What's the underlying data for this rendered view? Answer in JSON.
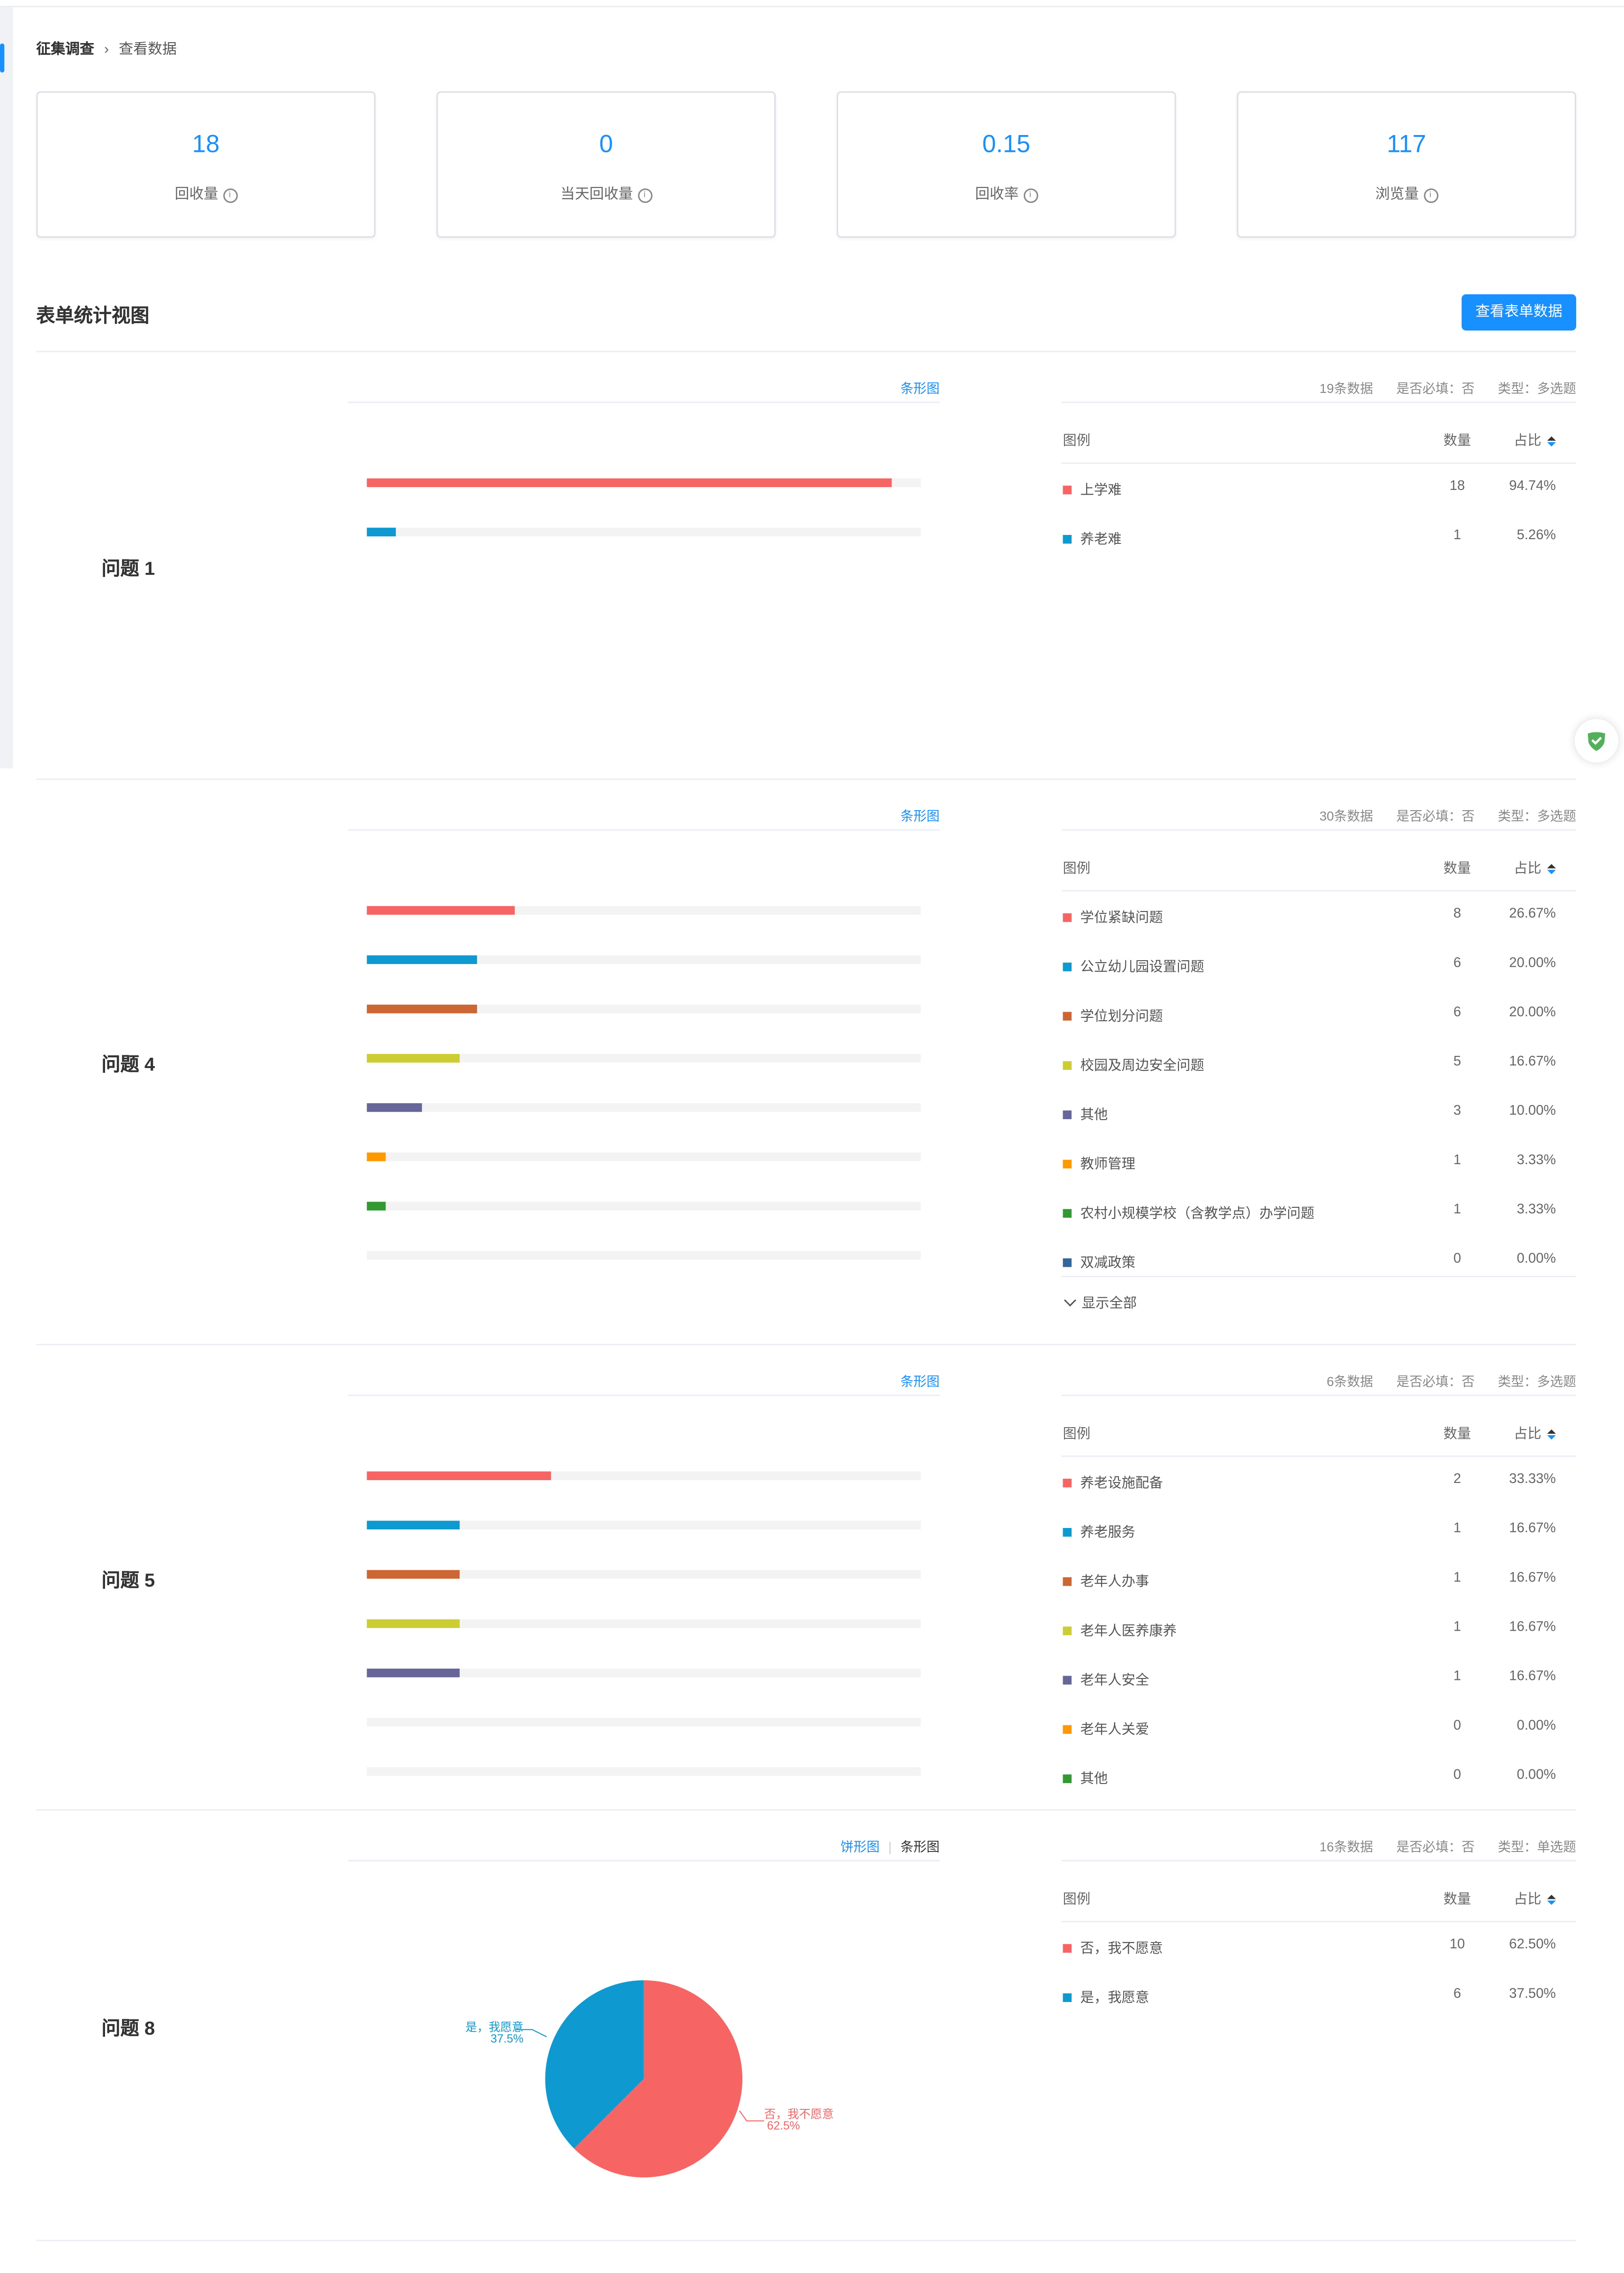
{
  "breadcrumb": {
    "parent": "征集调查",
    "current": "查看数据"
  },
  "stats": [
    {
      "value": "18",
      "label": "回收量"
    },
    {
      "value": "0",
      "label": "当天回收量"
    },
    {
      "value": "0.15",
      "label": "回收率"
    },
    {
      "value": "117",
      "label": "浏览量"
    }
  ],
  "section_title": "表单统计视图",
  "view_form_data_button": "查看表单数据",
  "table_headers": {
    "legend": "图例",
    "count": "数量",
    "ratio": "占比"
  },
  "colors": [
    "#f76464",
    "#0e9ad0",
    "#cc6633",
    "#cccc33",
    "#666699",
    "#ff9900",
    "#339933",
    "#336699"
  ],
  "questions": [
    {
      "label": "问题 1",
      "chart_types": [
        "条形图"
      ],
      "active_chart": "条形图",
      "data_count": "19条数据",
      "required": "是否必填：否",
      "type": "类型：多选题",
      "items": [
        {
          "name": "上学难",
          "count": "18",
          "ratio": "94.74%",
          "fraction": 0.9474
        },
        {
          "name": "养老难",
          "count": "1",
          "ratio": "5.26%",
          "fraction": 0.0526
        }
      ]
    },
    {
      "label": "问题 4",
      "chart_types": [
        "条形图"
      ],
      "active_chart": "条形图",
      "data_count": "30条数据",
      "required": "是否必填：否",
      "type": "类型：多选题",
      "show_all": "显示全部",
      "items": [
        {
          "name": "学位紧缺问题",
          "count": "8",
          "ratio": "26.67%",
          "fraction": 0.2667
        },
        {
          "name": "公立幼儿园设置问题",
          "count": "6",
          "ratio": "20.00%",
          "fraction": 0.2
        },
        {
          "name": "学位划分问题",
          "count": "6",
          "ratio": "20.00%",
          "fraction": 0.2
        },
        {
          "name": "校园及周边安全问题",
          "count": "5",
          "ratio": "16.67%",
          "fraction": 0.1667
        },
        {
          "name": "其他",
          "count": "3",
          "ratio": "10.00%",
          "fraction": 0.1
        },
        {
          "name": "教师管理",
          "count": "1",
          "ratio": "3.33%",
          "fraction": 0.0333
        },
        {
          "name": "农村小规模学校（含教学点）办学问题",
          "count": "1",
          "ratio": "3.33%",
          "fraction": 0.0333
        },
        {
          "name": "双减政策",
          "count": "0",
          "ratio": "0.00%",
          "fraction": 0
        }
      ]
    },
    {
      "label": "问题 5",
      "chart_types": [
        "条形图"
      ],
      "active_chart": "条形图",
      "data_count": "6条数据",
      "required": "是否必填：否",
      "type": "类型：多选题",
      "items": [
        {
          "name": "养老设施配备",
          "count": "2",
          "ratio": "33.33%",
          "fraction": 0.3333
        },
        {
          "name": "养老服务",
          "count": "1",
          "ratio": "16.67%",
          "fraction": 0.1667
        },
        {
          "name": "老年人办事",
          "count": "1",
          "ratio": "16.67%",
          "fraction": 0.1667
        },
        {
          "name": "老年人医养康养",
          "count": "1",
          "ratio": "16.67%",
          "fraction": 0.1667
        },
        {
          "name": "老年人安全",
          "count": "1",
          "ratio": "16.67%",
          "fraction": 0.1667
        },
        {
          "name": "老年人关爱",
          "count": "0",
          "ratio": "0.00%",
          "fraction": 0
        },
        {
          "name": "其他",
          "count": "0",
          "ratio": "0.00%",
          "fraction": 0
        }
      ]
    },
    {
      "label": "问题 8",
      "chart_types": [
        "饼形图",
        "条形图"
      ],
      "active_chart": "饼形图",
      "data_count": "16条数据",
      "required": "是否必填：否",
      "type": "类型：单选题",
      "items": [
        {
          "name": "否，我不愿意",
          "count": "10",
          "ratio": "62.50%",
          "fraction": 0.625
        },
        {
          "name": "是，我愿意",
          "count": "6",
          "ratio": "37.50%",
          "fraction": 0.375
        }
      ],
      "pie_labels": [
        {
          "name": "否，我不愿意",
          "percent": "62.5%"
        },
        {
          "name": "是，我愿意",
          "percent": "37.5%"
        }
      ]
    }
  ],
  "chart_data": [
    {
      "type": "bar",
      "categories": [
        "上学难",
        "养老难"
      ],
      "values": [
        18,
        1
      ]
    },
    {
      "type": "bar",
      "categories": [
        "学位紧缺问题",
        "公立幼儿园设置问题",
        "学位划分问题",
        "校园及周边安全问题",
        "其他",
        "教师管理",
        "农村小规模学校（含教学点）办学问题",
        "双减政策"
      ],
      "values": [
        8,
        6,
        6,
        5,
        3,
        1,
        1,
        0
      ]
    },
    {
      "type": "bar",
      "categories": [
        "养老设施配备",
        "养老服务",
        "老年人办事",
        "老年人医养康养",
        "老年人安全",
        "老年人关爱",
        "其他"
      ],
      "values": [
        2,
        1,
        1,
        1,
        1,
        0,
        0
      ]
    },
    {
      "type": "pie",
      "categories": [
        "否，我不愿意",
        "是，我愿意"
      ],
      "values": [
        10,
        6
      ],
      "percent_labels": [
        "62.5%",
        "37.5%"
      ]
    }
  ]
}
